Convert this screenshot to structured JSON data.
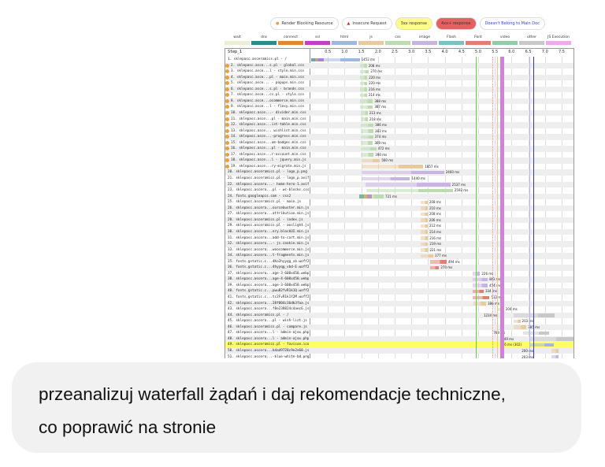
{
  "buttons": [
    {
      "label": "Render Blocking Resource",
      "icon": "render-blocking-icon",
      "color": "#e8a040"
    },
    {
      "label": "Insecure Request",
      "icon": "warning-icon",
      "color": "#d03020"
    },
    {
      "label": "3xx response",
      "bg": "#ffff88"
    },
    {
      "label": "4xx+ response",
      "bg": "#e56060"
    },
    {
      "label": "Doesn't Belong to Main Doc",
      "color": "#3344cc"
    }
  ],
  "legend": [
    {
      "label": "wait",
      "color": "#eeeed8"
    },
    {
      "label": "dns",
      "color": "#2e8a8a"
    },
    {
      "label": "connect",
      "color": "#e08a30"
    },
    {
      "label": "ssl",
      "color": "#c040c0"
    },
    {
      "label": "html",
      "color": "#9fb8e0"
    },
    {
      "label": "js",
      "color": "#e8c9a0"
    },
    {
      "label": "css",
      "color": "#bcdcb0"
    },
    {
      "label": "image",
      "color": "#c8b4e0"
    },
    {
      "label": "Flash",
      "color": "#7cc0c0"
    },
    {
      "label": "Font",
      "color": "#e08070"
    },
    {
      "label": "video",
      "color": "#90cca8"
    },
    {
      "label": "other",
      "color": "#c8c8c8"
    },
    {
      "label": "JS Execution",
      "color": "#f0a8f0"
    }
  ],
  "step_label": "Step_1",
  "ticks": [
    "0.5",
    "1.0",
    "1.5",
    "2.0",
    "2.5",
    "3.0",
    "3.5",
    "4.0",
    "4.5",
    "5.0",
    "5.5",
    "6.0",
    "6.5",
    "7.0",
    "7.5"
  ],
  "rows": [
    {
      "label": "1. sklepasc.asceramics.pl - /",
      "type": "html",
      "start": 0,
      "ms": 1452,
      "text": "1452 ms",
      "pre": true
    },
    {
      "label": "2. sklepasc.asce...s.pl - global.css",
      "type": "css",
      "start": 1.46,
      "ms": 208,
      "text": "208 ms",
      "rb": true
    },
    {
      "label": "3. sklepasc.asce...l - style.min.css",
      "type": "css",
      "start": 1.46,
      "ms": 270,
      "text": "270 ms",
      "rb": true
    },
    {
      "label": "4. sklepasc.asce...pl - main.min.css",
      "type": "css",
      "start": 1.46,
      "ms": 220,
      "text": "220 ms",
      "rb": true
    },
    {
      "label": "5. sklepasc.asce... - popups.min.css",
      "type": "css",
      "start": 1.46,
      "ms": 220,
      "text": "220 ms",
      "rb": true
    },
    {
      "label": "6. sklepasc.asce...s.pl - brands.css",
      "type": "css",
      "start": 1.46,
      "ms": 216,
      "text": "216 ms",
      "rb": true
    },
    {
      "label": "7. sklepasc.asce...cs.pl - style.css",
      "type": "css",
      "start": 1.46,
      "ms": 214,
      "text": "214 ms",
      "rb": true
    },
    {
      "label": "8. sklepasc.asce...ocommerce.min.css",
      "type": "css",
      "start": 1.46,
      "ms": 388,
      "text": "388 ms",
      "rb": true
    },
    {
      "label": "9. sklepasc.asce...l - flexy.min.css",
      "type": "css",
      "start": 1.46,
      "ms": 387,
      "text": "387 ms",
      "rb": true
    },
    {
      "label": "10. sklepasc.asce...- divider.min.css",
      "type": "css",
      "start": 1.48,
      "ms": 213,
      "text": "213 ms",
      "rb": true
    },
    {
      "label": "11. sklepasc.asce...pl - main.min.css",
      "type": "css",
      "start": 1.48,
      "ms": 218,
      "text": "218 ms",
      "rb": true
    },
    {
      "label": "12. sklepasc.asce...ist-table.min.css",
      "type": "css",
      "start": 1.48,
      "ms": 386,
      "text": "386 ms",
      "rb": true
    },
    {
      "label": "13. sklepasc.asce... wishlist.min.css",
      "type": "css",
      "start": 1.48,
      "ms": 383,
      "text": "383 ms",
      "rb": true
    },
    {
      "label": "14. sklepasc.asce...-progress.min.css",
      "type": "css",
      "start": 1.48,
      "ms": 374,
      "text": "374 ms",
      "rb": true
    },
    {
      "label": "15. sklepasc.asce...om-badges.min.css",
      "type": "css",
      "start": 1.48,
      "ms": 369,
      "text": "369 ms",
      "rb": true
    },
    {
      "label": "16. sklepasc.asce...pl - main.min.css",
      "type": "css",
      "start": 1.48,
      "ms": 472,
      "text": "472 ms",
      "rb": true
    },
    {
      "label": "17. sklepasc.asce...r-account.min.css",
      "type": "css",
      "start": 1.48,
      "ms": 390,
      "text": "390 ms",
      "rb": true
    },
    {
      "label": "18. sklepasc.asce...l - jquery.min.js",
      "type": "js",
      "start": 1.5,
      "ms": 560,
      "text": "560 ms",
      "rb": true
    },
    {
      "label": "19. sklepasc.asce...ry-migrate.min.js",
      "type": "js",
      "start": 1.5,
      "ms": 1857,
      "text": "1857 ms",
      "rb": true
    },
    {
      "label": "20. sklepasc.asceramics.pl - logo_p.png",
      "type": "image",
      "start": 1.52,
      "ms": 2460,
      "text": "2460 ms"
    },
    {
      "label": "21. sklepasc.asceramics.pl - logo_p.avif",
      "type": "image",
      "start": 1.52,
      "ms": 1440,
      "text": "1440 ms"
    },
    {
      "label": "22. sklepasc.ascera...- home-hero-1.avif",
      "type": "image",
      "start": 1.63,
      "ms": 2537,
      "text": "2537 ms"
    },
    {
      "label": "23. sklepasc.ascera...pl - wc-blocks.css",
      "type": "css",
      "start": 1.65,
      "ms": 2592,
      "text": "2592 ms"
    },
    {
      "label": "24. fonts.googleapis.com - css2",
      "type": "css",
      "start": 1.45,
      "ms": 721,
      "text": "721 ms",
      "pre": true
    },
    {
      "label": "25. sklepasc.asceramics.pl - main.js",
      "type": "js",
      "start": 3.28,
      "ms": 208,
      "text": "208 ms"
    },
    {
      "label": "26. sklepasc.ascera...ourcebuster.min.js",
      "type": "js",
      "start": 3.28,
      "ms": 210,
      "text": "210 ms"
    },
    {
      "label": "27. sklepasc.ascera...attribution.min.js",
      "type": "js",
      "start": 3.28,
      "ms": 208,
      "text": "208 ms"
    },
    {
      "label": "28. sklepasc.asceramics.pl - index.js",
      "type": "js",
      "start": 3.28,
      "ms": 206,
      "text": "206 ms"
    },
    {
      "label": "29. sklepasc.asceramics.pl - aoslight.js",
      "type": "js",
      "start": 3.28,
      "ms": 212,
      "text": "212 ms"
    },
    {
      "label": "30. sklepasc.ascera...ery.blockUI.min.js",
      "type": "js",
      "start": 3.28,
      "ms": 214,
      "text": "214 ms"
    },
    {
      "label": "31. sklepasc.ascera...add-to-cart.min.js",
      "type": "js",
      "start": 3.28,
      "ms": 216,
      "text": "216 ms"
    },
    {
      "label": "32. sklepasc.ascera...- js.cookie.min.js",
      "type": "js",
      "start": 3.28,
      "ms": 219,
      "text": "219 ms"
    },
    {
      "label": "33. sklepasc.ascera...woocommerce.min.js",
      "type": "js",
      "start": 3.28,
      "ms": 221,
      "text": "221 ms"
    },
    {
      "label": "34. sklepasc.ascera...t-fragments.min.js",
      "type": "js",
      "start": 3.28,
      "ms": 377,
      "text": "377 ms"
    },
    {
      "label": "35. fonts.gstatic.c...4Ko2hyyqg_vb.woff2",
      "type": "font",
      "start": 3.56,
      "ms": 494,
      "text": "494 ms"
    },
    {
      "label": "36. fonts.gstatic.c...4hyyqg_vbd-E.woff2",
      "type": "font",
      "start": 3.56,
      "ms": 270,
      "text": "270 ms"
    },
    {
      "label": "37. sklepasc.ascera...age-3-600x450.webp",
      "type": "image",
      "start": 4.83,
      "ms": 226,
      "text": "226 ms"
    },
    {
      "label": "38. sklepasc.ascera...age-4-600x450.webp",
      "type": "image",
      "start": 4.83,
      "ms": 443,
      "text": "443 ms"
    },
    {
      "label": "39. sklepasc.ascera...age-3-600x450.webp",
      "type": "image",
      "start": 4.83,
      "ms": 454,
      "text": "454 ms"
    },
    {
      "label": "40. fonts.gstatic.c...pwu82fvR1k1Q.woff2",
      "type": "font",
      "start": 4.83,
      "ms": 334,
      "text": "334 ms"
    },
    {
      "label": "41. fonts.gstatic.c...tc2FvR1k1Y2M.woff2",
      "type": "font",
      "start": 4.83,
      "ms": 512,
      "text": "512 ms"
    },
    {
      "label": "42. sklepasc.ascera...28f804c36db3faa.js",
      "type": "js",
      "start": 4.85,
      "ms": 386,
      "text": "386 ms"
    },
    {
      "label": "43. sklepasc.ascera...f8e238824c4aec6.js",
      "type": "js",
      "start": 5.57,
      "ms": 204,
      "text": "204 ms"
    },
    {
      "label": "44. sklepasc.asceramics.pl - /",
      "type": "other",
      "start": 6.06,
      "ms": 1234,
      "text": "1234 ms"
    },
    {
      "label": "45. sklepasc.ascera...pl - wish-list.js",
      "type": "js",
      "start": 6.06,
      "ms": 203,
      "text": "203 ms"
    },
    {
      "label": "46. sklepasc.asceramics.pl - compare.js",
      "type": "js",
      "start": 6.06,
      "ms": 385,
      "text": "385 ms"
    },
    {
      "label": "47. sklepasc.ascera...l - admin-ajax.php",
      "type": "other",
      "start": 6.35,
      "ms": 769,
      "text": "769 ms"
    },
    {
      "label": "48. sklepasc.ascera...l - admin-ajax.php",
      "type": "other",
      "start": 6.55,
      "ms": 1349,
      "text": "1349 ms"
    },
    {
      "label": "49. sklepasc.asceramics.pl - favicon.ico",
      "type": "html",
      "start": 6.56,
      "ms": 706,
      "text": "706 ms (302)",
      "hl": true
    },
    {
      "label": "50. sklepasc.ascera...bdad9728c9e2e60.js",
      "type": "js",
      "start": 7.2,
      "ms": 200,
      "text": "200 ms"
    },
    {
      "label": "51. sklepasc.ascera...-blue-white-bd.png",
      "type": "image",
      "start": 7.2,
      "ms": 203,
      "text": "203 ms"
    }
  ],
  "markers": [
    {
      "name": "start-render",
      "time": 4.93,
      "color": "#66cc44"
    },
    {
      "name": "dom-interactive",
      "time": 5.42,
      "color": "#f0a040",
      "dotted": true
    },
    {
      "name": "dom-content-loaded",
      "time": 5.56,
      "color": "#e8c890"
    },
    {
      "name": "js-execution",
      "time": 5.66,
      "color": "#d080e0",
      "wide": true
    },
    {
      "name": "on-load",
      "time": 6.53,
      "color": "#b0b8f0"
    },
    {
      "name": "document-complete",
      "time": 6.65,
      "color": "#3333bb"
    }
  ],
  "chat": {
    "message": "przeanalizuj waterfall żądań i daj rekomendacje techniczne, co poprawić na stronie"
  }
}
